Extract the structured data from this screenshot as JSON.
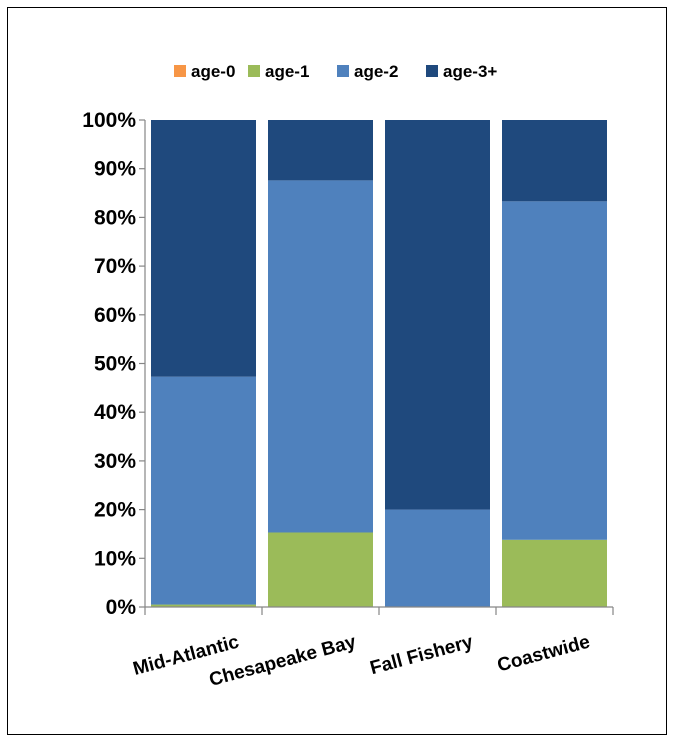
{
  "chart_data": {
    "type": "bar",
    "stacked": "percent",
    "categories": [
      "Mid-Atlantic",
      "Chesapeake Bay",
      "Fall Fishery",
      "Coastwide"
    ],
    "series": [
      {
        "name": "age-0",
        "color": "#f79646",
        "values": [
          0,
          0,
          0,
          0
        ]
      },
      {
        "name": "age-1",
        "color": "#9bbb59",
        "values": [
          0.5,
          15.3,
          0,
          13.8
        ]
      },
      {
        "name": "age-2",
        "color": "#4f81bd",
        "values": [
          46.8,
          72.3,
          20.0,
          69.5
        ]
      },
      {
        "name": "age-3+",
        "color": "#1f497d",
        "values": [
          52.7,
          12.4,
          80.0,
          16.7
        ]
      }
    ],
    "y_ticks": [
      "0%",
      "10%",
      "20%",
      "30%",
      "40%",
      "50%",
      "60%",
      "70%",
      "80%",
      "90%",
      "100%"
    ],
    "ylim": [
      0,
      100
    ],
    "legend_position": "top",
    "grid": false
  }
}
